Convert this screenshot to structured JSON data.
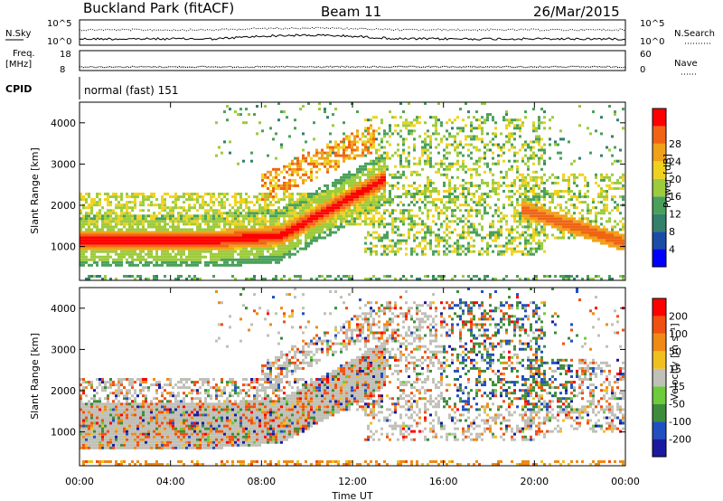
{
  "header": {
    "station": "Buckland Park (fitACF)",
    "beam": "Beam 11",
    "date": "26/Mar/2015"
  },
  "top_panels": {
    "nsky_label": "N.Sky",
    "nsearch_label": "N.Search",
    "nsky_ticks": [
      "10^5",
      "10^0"
    ],
    "nsearch_ticks": [
      "10^5",
      "10^0"
    ],
    "freq_label_1": "Freq.",
    "freq_label_2": "[MHz]",
    "freq_ticks": [
      "18",
      "8"
    ],
    "nave_label": "Nave",
    "nave_ticks": [
      "60",
      "0"
    ],
    "cpid_label": "CPID",
    "cpid_value": "normal (fast) 151"
  },
  "chart_data": [
    {
      "type": "heatmap",
      "name": "power",
      "ylabel": "Slant Range [km]",
      "ylim": [
        180,
        4500
      ],
      "yticks": [
        1000,
        2000,
        3000,
        4000
      ],
      "xlim": [
        0,
        24
      ],
      "xticks": [
        "00:00",
        "04:00",
        "08:00",
        "12:00",
        "16:00",
        "20:00",
        "00:00"
      ],
      "colorbar": {
        "label": "Power [dB]",
        "ticks": [
          4,
          8,
          12,
          16,
          20,
          24,
          28
        ],
        "colors": [
          "#0000ff",
          "#1a4da6",
          "#33806b",
          "#4aa05a",
          "#9ccb3c",
          "#f0d21e",
          "#f0a019",
          "#f06414",
          "#ff0000"
        ]
      }
    },
    {
      "type": "heatmap",
      "name": "velocity",
      "ylabel": "Slant Range [km]",
      "ylim": [
        180,
        4500
      ],
      "yticks": [
        1000,
        2000,
        3000,
        4000
      ],
      "xlim": [
        0,
        24
      ],
      "xticks": [
        "00:00",
        "04:00",
        "08:00",
        "12:00",
        "16:00",
        "20:00",
        "00:00"
      ],
      "xlabel": "Time UT",
      "colorbar": {
        "label": "Velocity [m s⁻¹]",
        "ticks": [
          200,
          100,
          50,
          15,
          -15,
          -50,
          -100,
          -200
        ],
        "colors": [
          "#1a1aa0",
          "#2050c0",
          "#3c8c3c",
          "#6ccc3c",
          "#c0c0b8",
          "#f0c020",
          "#f08a14",
          "#f05010",
          "#ff0000"
        ]
      }
    }
  ]
}
